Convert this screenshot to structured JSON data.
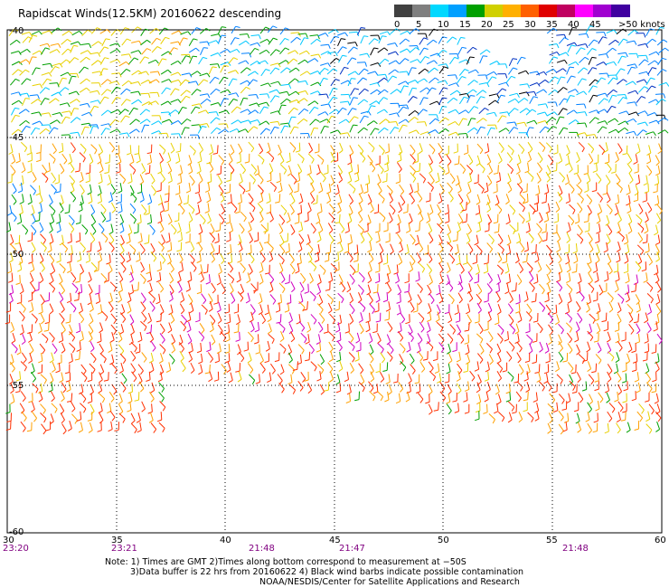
{
  "title": "Rapidscat Winds(12.5KM) 20160622 descending",
  "legend": {
    "labels": [
      "0",
      "5",
      "10",
      "15",
      "20",
      "25",
      "30",
      "35",
      "40",
      "45",
      ">50 knots"
    ],
    "colors": [
      "#404040",
      "#7f7f7f",
      "#00d8ff",
      "#00a0ff",
      "#00a000",
      "#d0d000",
      "#ffb000",
      "#ff6000",
      "#e00000",
      "#c00060",
      "#ff00ff",
      "#a000d0",
      "#4000a0"
    ]
  },
  "map": {
    "lon_labels": [
      "30",
      "35",
      "40",
      "45",
      "50",
      "55",
      "60"
    ],
    "lat_labels": [
      "-40",
      "-45",
      "-50",
      "-55",
      "-60"
    ],
    "times": [
      "23:20",
      "23:21",
      "21:48",
      "21:47",
      "21:48"
    ]
  },
  "notes": {
    "line1": "Note: 1) Times are GMT 2)Times along bottom correspond to measurement at −50S",
    "line2": "3)Data buffer is 22 hrs from 20160622 4) Black wind barbs indicate possible contamination",
    "line3": "NOAA/NESDIS/Center for Satellite Applications and Research"
  }
}
